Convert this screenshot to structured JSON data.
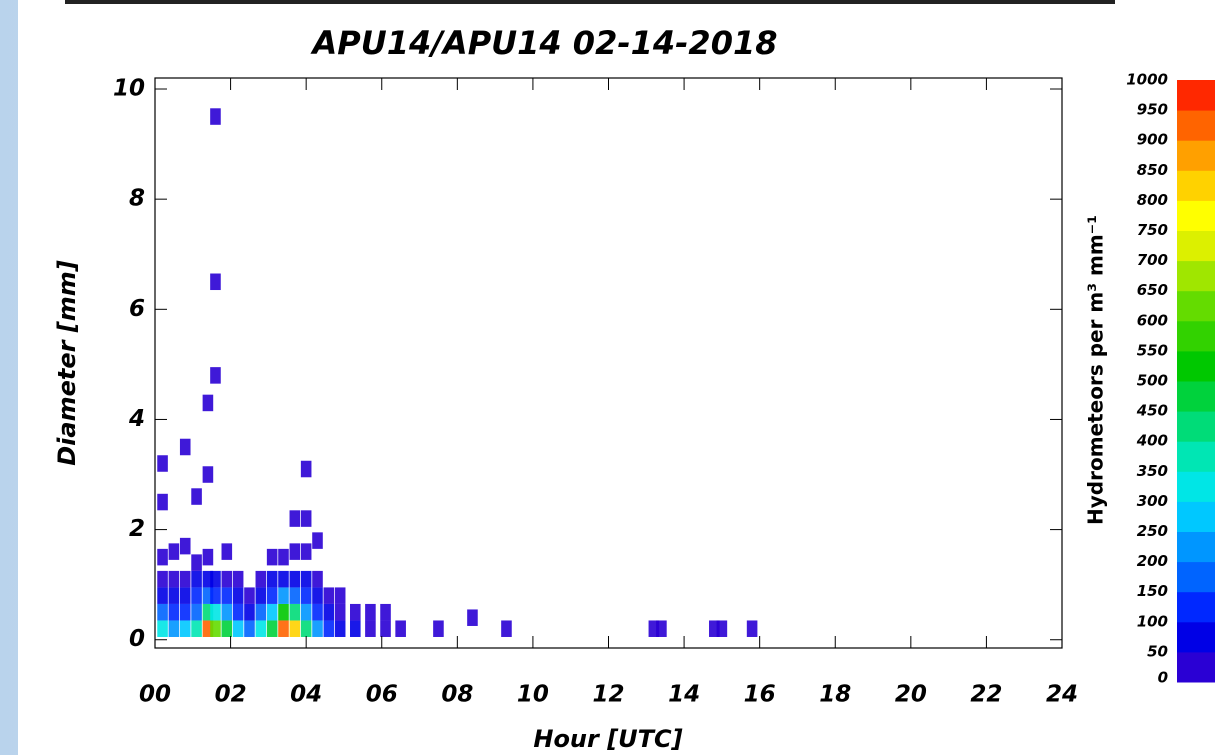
{
  "chart_data": {
    "type": "heatmap",
    "title": "APU14/APU14 02-14-2018",
    "xlabel": "Hour [UTC]",
    "ylabel": "Diameter [mm]",
    "xlim": [
      0,
      24
    ],
    "ylim": [
      -0.15,
      10.2
    ],
    "xticks": [
      {
        "value": 0,
        "label": "00"
      },
      {
        "value": 2,
        "label": "02"
      },
      {
        "value": 4,
        "label": "04"
      },
      {
        "value": 6,
        "label": "06"
      },
      {
        "value": 8,
        "label": "08"
      },
      10,
      12,
      14,
      16,
      18,
      20,
      22,
      24
    ],
    "yticks": [
      0,
      2,
      4,
      6,
      8,
      10
    ],
    "x": [
      0.2,
      0.2,
      0.2,
      0.2,
      0.2,
      0.2,
      0.2,
      0.5,
      0.5,
      0.5,
      0.5,
      0.5,
      0.8,
      0.8,
      0.8,
      0.8,
      0.8,
      0.8,
      1.1,
      1.1,
      1.1,
      1.1,
      1.1,
      1.1,
      1.4,
      1.4,
      1.4,
      1.4,
      1.4,
      1.4,
      1.4,
      1.6,
      1.6,
      1.6,
      1.6,
      1.6,
      1.6,
      1.6,
      1.9,
      1.9,
      1.9,
      1.9,
      1.9,
      2.2,
      2.2,
      2.2,
      2.2,
      2.5,
      2.5,
      2.5,
      2.8,
      2.8,
      2.8,
      2.8,
      3.1,
      3.1,
      3.1,
      3.1,
      3.1,
      3.4,
      3.4,
      3.4,
      3.4,
      3.4,
      3.7,
      3.7,
      3.7,
      3.7,
      3.7,
      3.7,
      4.0,
      4.0,
      4.0,
      4.0,
      4.0,
      4.0,
      4.0,
      4.3,
      4.3,
      4.3,
      4.3,
      4.3,
      4.6,
      4.6,
      4.6,
      4.9,
      4.9,
      4.9,
      5.3,
      5.3,
      5.7,
      5.7,
      6.1,
      6.1,
      6.5,
      7.5,
      8.4,
      9.3,
      13.2,
      13.4,
      14.8,
      15.0,
      15.8
    ],
    "y": [
      0.2,
      0.5,
      0.8,
      1.1,
      1.5,
      2.5,
      3.2,
      0.2,
      0.5,
      0.8,
      1.1,
      1.6,
      0.2,
      0.5,
      0.8,
      1.1,
      1.7,
      3.5,
      0.2,
      0.5,
      0.8,
      1.1,
      1.4,
      2.6,
      0.2,
      0.5,
      0.8,
      1.1,
      1.5,
      3.0,
      4.3,
      0.2,
      0.5,
      0.8,
      1.1,
      4.8,
      6.5,
      9.5,
      0.2,
      0.5,
      0.8,
      1.1,
      1.6,
      0.2,
      0.5,
      0.8,
      1.1,
      0.2,
      0.5,
      0.8,
      0.2,
      0.5,
      0.8,
      1.1,
      0.2,
      0.5,
      0.8,
      1.1,
      1.5,
      0.2,
      0.5,
      0.8,
      1.1,
      1.5,
      0.2,
      0.5,
      0.8,
      1.1,
      1.6,
      2.2,
      0.2,
      0.5,
      0.8,
      1.1,
      1.6,
      2.2,
      3.1,
      0.2,
      0.5,
      0.8,
      1.1,
      1.8,
      0.2,
      0.5,
      0.8,
      0.2,
      0.5,
      0.8,
      0.2,
      0.5,
      0.2,
      0.5,
      0.2,
      0.5,
      0.2,
      0.2,
      0.4,
      0.2,
      0.2,
      0.2,
      0.2,
      0.2,
      0.2
    ],
    "values": [
      300,
      150,
      80,
      40,
      20,
      10,
      5,
      200,
      120,
      70,
      30,
      15,
      250,
      140,
      90,
      40,
      15,
      5,
      350,
      180,
      100,
      50,
      20,
      8,
      900,
      400,
      150,
      60,
      25,
      8,
      5,
      600,
      300,
      120,
      50,
      5,
      5,
      5,
      450,
      200,
      100,
      40,
      15,
      250,
      130,
      70,
      30,
      150,
      80,
      40,
      300,
      150,
      80,
      40,
      450,
      250,
      120,
      50,
      20,
      900,
      500,
      200,
      80,
      30,
      800,
      400,
      180,
      70,
      25,
      10,
      400,
      220,
      100,
      50,
      20,
      10,
      5,
      200,
      100,
      60,
      30,
      10,
      120,
      70,
      35,
      80,
      40,
      20,
      50,
      25,
      30,
      15,
      20,
      10,
      15,
      8,
      8,
      8,
      8,
      8,
      8,
      8,
      8
    ],
    "colorbar": {
      "label": "Hydrometeors per m³ mm⁻¹",
      "ticks": [
        0,
        50,
        100,
        150,
        200,
        250,
        300,
        350,
        400,
        450,
        500,
        550,
        600,
        650,
        700,
        750,
        800,
        850,
        900,
        950,
        1000
      ],
      "colors": [
        "#2a00d4",
        "#0000e6",
        "#0028ff",
        "#0064ff",
        "#0096ff",
        "#00c8ff",
        "#00e6e6",
        "#00e6b4",
        "#00dc78",
        "#00d23c",
        "#00c800",
        "#32d200",
        "#64dc00",
        "#a0e600",
        "#dcf000",
        "#ffff00",
        "#ffd200",
        "#ffa000",
        "#ff6400",
        "#ff2800"
      ]
    }
  }
}
